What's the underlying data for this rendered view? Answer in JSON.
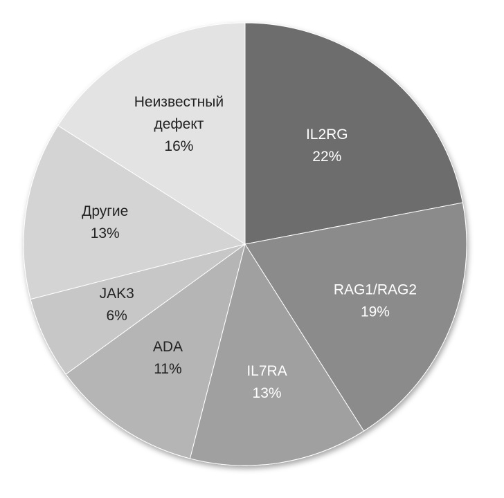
{
  "chart_data": {
    "type": "pie",
    "categories": [
      "IL2RG",
      "RAG1/RAG2",
      "IL7RA",
      "ADA",
      "JAK3",
      "Другие",
      "Неизвестный дефект"
    ],
    "values": [
      22,
      19,
      13,
      11,
      6,
      13,
      16
    ],
    "value_labels": [
      "22%",
      "19%",
      "13%",
      "11%",
      "6%",
      "13%",
      "16%"
    ],
    "colors": [
      "#6d6d6d",
      "#8b8b8b",
      "#a0a0a0",
      "#b5b5b5",
      "#c7c7c7",
      "#d4d4d4",
      "#e3e3e3"
    ],
    "label_colors": [
      "#ffffff",
      "#ffffff",
      "#ffffff",
      "#222222",
      "#222222",
      "#222222",
      "#222222"
    ],
    "start_angle_deg": 0,
    "direction": "clockwise",
    "legend": "none"
  }
}
